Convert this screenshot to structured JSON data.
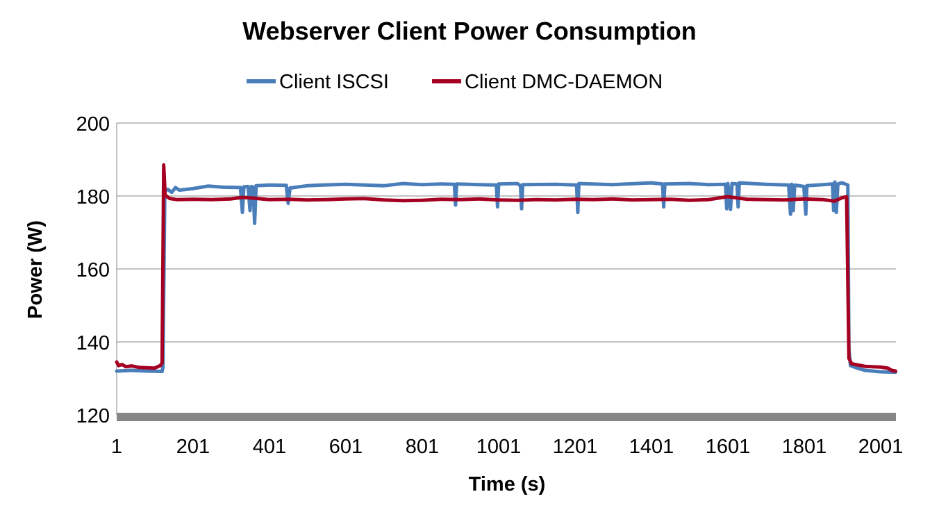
{
  "chart_data": {
    "type": "line",
    "title": "Webserver Client Power Consumption",
    "xlabel": "Time (s)",
    "ylabel": "Power (W)",
    "ylim": [
      120,
      200
    ],
    "yticks": [
      120,
      140,
      160,
      180,
      200
    ],
    "x_tick_labels": [
      "1",
      "201",
      "401",
      "601",
      "801",
      "1001",
      "1201",
      "1401",
      "1601",
      "1801",
      "2001"
    ],
    "xlim": [
      1,
      2041
    ],
    "grid": "horizontal",
    "legend_position": "top",
    "series": [
      {
        "name": "Client  ISCSI",
        "color": "#4a7ebb",
        "points": [
          [
            1,
            132
          ],
          [
            40,
            132.2
          ],
          [
            80,
            132
          ],
          [
            120,
            131.9
          ],
          [
            122,
            133
          ],
          [
            127,
            181.5
          ],
          [
            135,
            181.8
          ],
          [
            145,
            181
          ],
          [
            155,
            182.3
          ],
          [
            165,
            181.6
          ],
          [
            200,
            182
          ],
          [
            240,
            182.7
          ],
          [
            280,
            182.4
          ],
          [
            325,
            182.3
          ],
          [
            330,
            175.5
          ],
          [
            334,
            182.5
          ],
          [
            345,
            182.6
          ],
          [
            350,
            176
          ],
          [
            354,
            182.6
          ],
          [
            358,
            182.4
          ],
          [
            362,
            172.5
          ],
          [
            366,
            182.8
          ],
          [
            400,
            183
          ],
          [
            445,
            182.9
          ],
          [
            450,
            178
          ],
          [
            455,
            182.2
          ],
          [
            500,
            182.8
          ],
          [
            540,
            183
          ],
          [
            600,
            183.2
          ],
          [
            650,
            183
          ],
          [
            700,
            182.8
          ],
          [
            750,
            183.4
          ],
          [
            800,
            183.1
          ],
          [
            850,
            183.3
          ],
          [
            885,
            183.2
          ],
          [
            888,
            177.5
          ],
          [
            891,
            183.3
          ],
          [
            950,
            183.1
          ],
          [
            995,
            183
          ],
          [
            998,
            177
          ],
          [
            1001,
            183.3
          ],
          [
            1050,
            183.4
          ],
          [
            1058,
            182.8
          ],
          [
            1061,
            176.5
          ],
          [
            1064,
            183.1
          ],
          [
            1150,
            183.2
          ],
          [
            1205,
            183
          ],
          [
            1208,
            175.5
          ],
          [
            1211,
            183.4
          ],
          [
            1300,
            183.1
          ],
          [
            1400,
            183.6
          ],
          [
            1430,
            183.3
          ],
          [
            1433,
            177
          ],
          [
            1436,
            183.3
          ],
          [
            1500,
            183.4
          ],
          [
            1550,
            183.1
          ],
          [
            1595,
            183.2
          ],
          [
            1598,
            176.5
          ],
          [
            1601,
            183.4
          ],
          [
            1608,
            176.3
          ],
          [
            1612,
            183.4
          ],
          [
            1625,
            183.3
          ],
          [
            1628,
            177
          ],
          [
            1631,
            183.6
          ],
          [
            1700,
            183.2
          ],
          [
            1760,
            183
          ],
          [
            1765,
            175
          ],
          [
            1768,
            183.2
          ],
          [
            1772,
            176
          ],
          [
            1776,
            183
          ],
          [
            1800,
            182.6
          ],
          [
            1805,
            175
          ],
          [
            1808,
            182.8
          ],
          [
            1850,
            183.1
          ],
          [
            1875,
            183.3
          ],
          [
            1878,
            176
          ],
          [
            1881,
            183.8
          ],
          [
            1885,
            175.5
          ],
          [
            1889,
            183.3
          ],
          [
            1900,
            183.6
          ],
          [
            1915,
            183
          ],
          [
            1918,
            138
          ],
          [
            1922,
            133.5
          ],
          [
            1940,
            132.8
          ],
          [
            1960,
            132.2
          ],
          [
            2000,
            131.8
          ],
          [
            2040,
            131.7
          ]
        ]
      },
      {
        "name": "Client  DMC-DAEMON",
        "color": "#a50021",
        "points": [
          [
            1,
            134.5
          ],
          [
            6,
            133.5
          ],
          [
            15,
            133.8
          ],
          [
            25,
            133.2
          ],
          [
            40,
            133.4
          ],
          [
            60,
            133
          ],
          [
            80,
            132.9
          ],
          [
            100,
            132.8
          ],
          [
            115,
            133.5
          ],
          [
            120,
            134.2
          ],
          [
            124,
            188.5
          ],
          [
            128,
            180.2
          ],
          [
            140,
            179.3
          ],
          [
            160,
            179
          ],
          [
            200,
            179.1
          ],
          [
            250,
            179
          ],
          [
            300,
            179.2
          ],
          [
            330,
            179.6
          ],
          [
            360,
            179.4
          ],
          [
            400,
            179
          ],
          [
            450,
            179.1
          ],
          [
            500,
            178.9
          ],
          [
            550,
            179
          ],
          [
            600,
            179.2
          ],
          [
            650,
            179.3
          ],
          [
            700,
            178.9
          ],
          [
            750,
            178.7
          ],
          [
            800,
            178.8
          ],
          [
            850,
            179.1
          ],
          [
            900,
            179
          ],
          [
            950,
            179.2
          ],
          [
            1000,
            178.9
          ],
          [
            1050,
            178.8
          ],
          [
            1100,
            179
          ],
          [
            1150,
            178.9
          ],
          [
            1200,
            179.1
          ],
          [
            1250,
            179
          ],
          [
            1300,
            179.2
          ],
          [
            1350,
            178.9
          ],
          [
            1400,
            179
          ],
          [
            1450,
            179.1
          ],
          [
            1500,
            178.8
          ],
          [
            1550,
            179
          ],
          [
            1600,
            179.8
          ],
          [
            1650,
            179.1
          ],
          [
            1700,
            179
          ],
          [
            1750,
            178.9
          ],
          [
            1800,
            179.2
          ],
          [
            1850,
            179
          ],
          [
            1880,
            178.6
          ],
          [
            1900,
            179.5
          ],
          [
            1912,
            179.8
          ],
          [
            1918,
            135.5
          ],
          [
            1925,
            134
          ],
          [
            1940,
            133.7
          ],
          [
            1960,
            133.3
          ],
          [
            1980,
            133.2
          ],
          [
            2000,
            133.1
          ],
          [
            2020,
            132.8
          ],
          [
            2030,
            132.2
          ],
          [
            2040,
            132
          ]
        ]
      }
    ]
  }
}
